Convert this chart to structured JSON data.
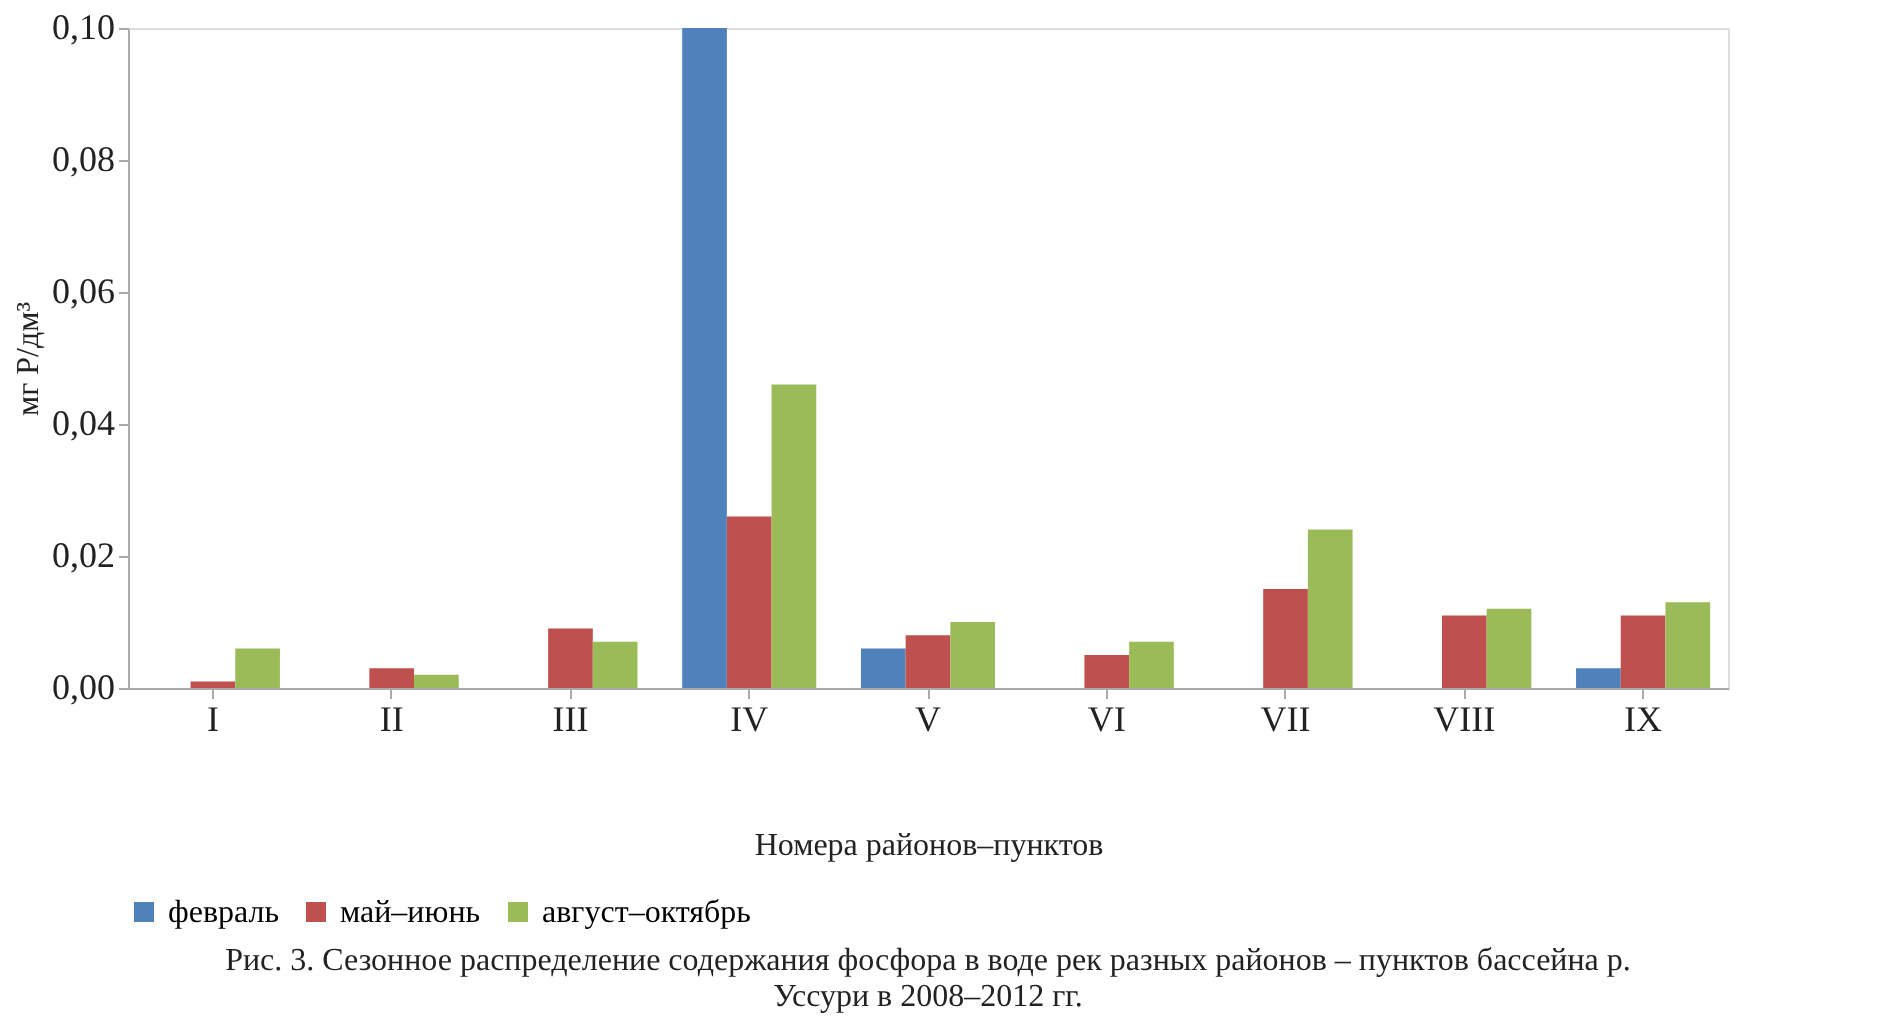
{
  "chart_data": {
    "type": "bar",
    "categories": [
      "I",
      "II",
      "III",
      "IV",
      "V",
      "VI",
      "VII",
      "VIII",
      "IX"
    ],
    "series": [
      {
        "name": "февраль",
        "color": "#4f81bd",
        "values": [
          null,
          null,
          null,
          0.1,
          0.006,
          null,
          null,
          null,
          0.003
        ]
      },
      {
        "name": "май–июнь",
        "color": "#c0504d",
        "values": [
          0.001,
          0.003,
          0.009,
          0.026,
          0.008,
          0.005,
          0.015,
          0.011,
          0.011
        ]
      },
      {
        "name": "август–октябрь",
        "color": "#9bbb59",
        "values": [
          0.006,
          0.002,
          0.007,
          0.046,
          0.01,
          0.007,
          0.024,
          0.012,
          0.013
        ]
      }
    ],
    "xlabel": "Номера районов–пунктов",
    "ylabel": "мг Р/дм³",
    "ylim": [
      0,
      0.1
    ],
    "yticks": [
      {
        "value": 0,
        "label": "0,00"
      },
      {
        "value": 0.02,
        "label": "0,02"
      },
      {
        "value": 0.04,
        "label": "0,04"
      },
      {
        "value": 0.06,
        "label": "0,06"
      },
      {
        "value": 0.08,
        "label": "0,08"
      },
      {
        "value": 0.1,
        "label": "0,10"
      }
    ],
    "grid": false,
    "legend": "bottom",
    "annotations": [
      "Рис. 3. Сезонное распределение содержания фосфора в воде рек разных районов – пунктов бассейна р. Уссури в 2008–2012 гг."
    ]
  }
}
